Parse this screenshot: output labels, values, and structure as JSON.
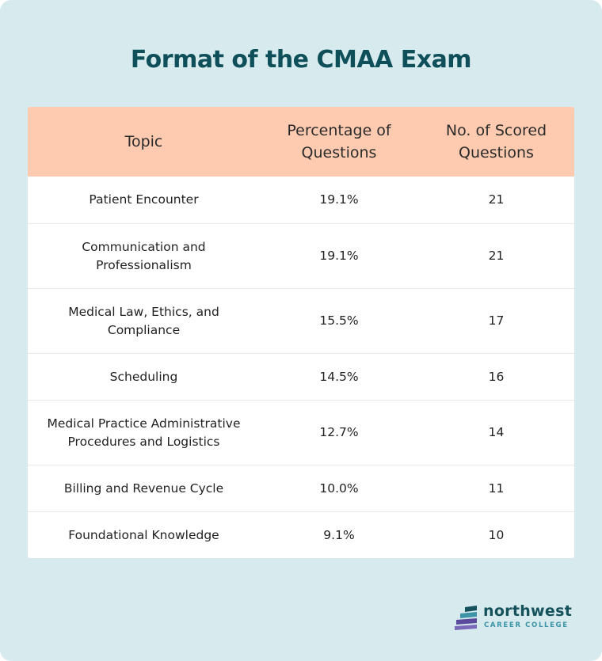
{
  "title": "Format of the CMAA Exam",
  "table": {
    "headers": {
      "topic": "Topic",
      "percentage": "Percentage of\nQuestions",
      "scored": "No. of Scored\nQuestions"
    },
    "rows": [
      {
        "topic": "Patient Encounter",
        "percentage": "19.1%",
        "scored": "21"
      },
      {
        "topic": "Communication and\nProfessionalism",
        "percentage": "19.1%",
        "scored": "21"
      },
      {
        "topic": "Medical Law, Ethics, and\nCompliance",
        "percentage": "15.5%",
        "scored": "17"
      },
      {
        "topic": "Scheduling",
        "percentage": "14.5%",
        "scored": "16"
      },
      {
        "topic": "Medical Practice Administrative\nProcedures and Logistics",
        "percentage": "12.7%",
        "scored": "14"
      },
      {
        "topic": "Billing and Revenue Cycle",
        "percentage": "10.0%",
        "scored": "11"
      },
      {
        "topic": "Foundational Knowledge",
        "percentage": "9.1%",
        "scored": "10"
      }
    ]
  },
  "logo": {
    "name": "northwest",
    "subtitle": "CAREER COLLEGE",
    "icon": "stacked-stripes-logo-icon"
  },
  "colors": {
    "background": "#d7ebee",
    "title": "#0e4f59",
    "header_bg": "#ffcbb0",
    "logo_teal": "#15525c",
    "logo_purple": "#5b4a9c"
  }
}
